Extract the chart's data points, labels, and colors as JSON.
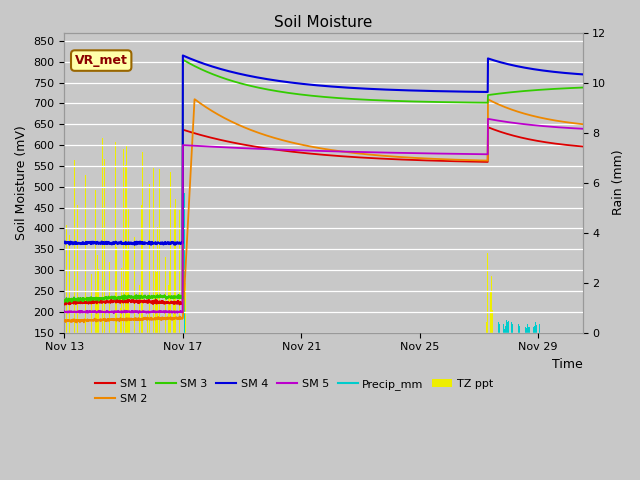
{
  "title": "Soil Moisture",
  "ylabel_left": "Soil Moisture (mV)",
  "ylabel_right": "Rain (mm)",
  "xlabel": "Time",
  "ylim_left": [
    150,
    870
  ],
  "ylim_right": [
    0,
    12
  ],
  "yticks_left": [
    150,
    200,
    250,
    300,
    350,
    400,
    450,
    500,
    550,
    600,
    650,
    700,
    750,
    800,
    850
  ],
  "yticks_right": [
    0,
    2,
    4,
    6,
    8,
    10,
    12
  ],
  "background_color": "#c8c8c8",
  "plot_bg_color": "#e0e0e0",
  "grid_color": "#ffffff",
  "colors": {
    "SM1": "#dd0000",
    "SM2": "#ee8800",
    "SM3": "#33cc00",
    "SM4": "#0000dd",
    "SM5": "#bb00cc",
    "Precip_mm": "#00cccc",
    "TZ_ppt": "#eeee00"
  },
  "legend_labels": [
    "SM 1",
    "SM 2",
    "SM 3",
    "SM 4",
    "SM 5",
    "Precip_mm",
    "TZ ppt"
  ],
  "vr_met_label": "VR_met",
  "x_tick_labels": [
    "Nov 13",
    "Nov 17",
    "Nov 21",
    "Nov 25",
    "Nov 29"
  ],
  "x_tick_positions": [
    0,
    4,
    8,
    12,
    16
  ],
  "xlim": [
    0,
    17.5
  ],
  "figsize": [
    6.4,
    4.8
  ],
  "dpi": 100
}
